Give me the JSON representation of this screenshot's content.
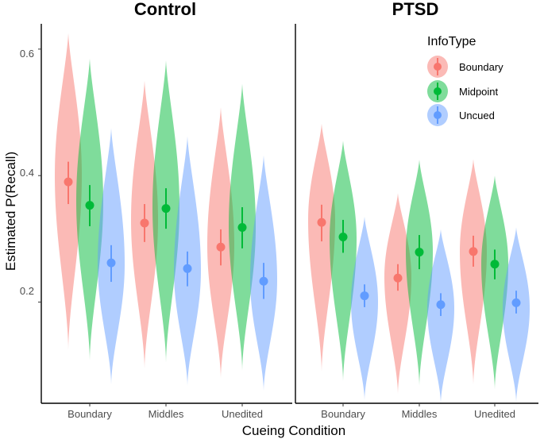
{
  "chart_data": {
    "type": "violin",
    "xlabel": "Cueing Condition",
    "ylabel": "Estimated P(Recall)",
    "ylim": [
      0.04,
      0.64
    ],
    "yticks": [
      "0.2",
      "0.4",
      "0.6"
    ],
    "ytick_values": [
      0.2,
      0.4,
      0.6
    ],
    "categories": [
      "Boundary",
      "Middles",
      "Unedited"
    ],
    "grid": false,
    "legend": {
      "title": "InfoType",
      "placement": "top-right",
      "entries": [
        {
          "label": "Boundary",
          "color": "#F8766D"
        },
        {
          "label": "Midpoint",
          "color": "#00BA38"
        },
        {
          "label": "Uncued",
          "color": "#619CFF"
        }
      ]
    },
    "facets": [
      {
        "title": "Control",
        "groups": [
          {
            "category": "Boundary",
            "series": [
              {
                "info": "Boundary",
                "mean": 0.39,
                "ci": [
                  0.355,
                  0.422
                ],
                "violin": [
                  0.125,
                  0.625
                ],
                "peak": 0.4
              },
              {
                "info": "Midpoint",
                "mean": 0.353,
                "ci": [
                  0.32,
                  0.385
                ],
                "violin": [
                  0.108,
                  0.585
                ],
                "peak": 0.36
              },
              {
                "info": "Uncued",
                "mean": 0.262,
                "ci": [
                  0.232,
                  0.29
                ],
                "violin": [
                  0.07,
                  0.475
                ],
                "peak": 0.26
              }
            ]
          },
          {
            "category": "Middles",
            "series": [
              {
                "info": "Boundary",
                "mean": 0.325,
                "ci": [
                  0.295,
                  0.355
                ],
                "violin": [
                  0.095,
                  0.55
                ],
                "peak": 0.33
              },
              {
                "info": "Midpoint",
                "mean": 0.348,
                "ci": [
                  0.316,
                  0.38
                ],
                "violin": [
                  0.105,
                  0.582
                ],
                "peak": 0.35
              },
              {
                "info": "Uncued",
                "mean": 0.253,
                "ci": [
                  0.225,
                  0.28
                ],
                "violin": [
                  0.068,
                  0.462
                ],
                "peak": 0.25
              }
            ]
          },
          {
            "category": "Unedited",
            "series": [
              {
                "info": "Boundary",
                "mean": 0.287,
                "ci": [
                  0.258,
                  0.315
                ],
                "violin": [
                  0.08,
                  0.508
                ],
                "peak": 0.29
              },
              {
                "info": "Midpoint",
                "mean": 0.318,
                "ci": [
                  0.285,
                  0.35
                ],
                "violin": [
                  0.092,
                  0.545
                ],
                "peak": 0.32
              },
              {
                "info": "Uncued",
                "mean": 0.233,
                "ci": [
                  0.205,
                  0.262
                ],
                "violin": [
                  0.06,
                  0.432
                ],
                "peak": 0.235
              }
            ]
          }
        ]
      },
      {
        "title": "PTSD",
        "groups": [
          {
            "category": "Boundary",
            "series": [
              {
                "info": "Boundary",
                "mean": 0.326,
                "ci": [
                  0.296,
                  0.354
                ],
                "violin": [
                  0.09,
                  0.482
                ],
                "peak": 0.33
              },
              {
                "info": "Midpoint",
                "mean": 0.303,
                "ci": [
                  0.278,
                  0.33
                ],
                "violin": [
                  0.075,
                  0.455
                ],
                "peak": 0.3
              },
              {
                "info": "Uncued",
                "mean": 0.21,
                "ci": [
                  0.192,
                  0.228
                ],
                "violin": [
                  0.045,
                  0.335
                ],
                "peak": 0.2
              }
            ]
          },
          {
            "category": "Middles",
            "series": [
              {
                "info": "Boundary",
                "mean": 0.238,
                "ci": [
                  0.218,
                  0.26
                ],
                "violin": [
                  0.055,
                  0.372
                ],
                "peak": 0.24
              },
              {
                "info": "Midpoint",
                "mean": 0.279,
                "ci": [
                  0.252,
                  0.306
                ],
                "violin": [
                  0.068,
                  0.425
                ],
                "peak": 0.28
              },
              {
                "info": "Uncued",
                "mean": 0.196,
                "ci": [
                  0.178,
                  0.214
                ],
                "violin": [
                  0.04,
                  0.315
                ],
                "peak": 0.19
              }
            ]
          },
          {
            "category": "Unedited",
            "series": [
              {
                "info": "Boundary",
                "mean": 0.28,
                "ci": [
                  0.256,
                  0.305
                ],
                "violin": [
                  0.07,
                  0.426
                ],
                "peak": 0.28
              },
              {
                "info": "Midpoint",
                "mean": 0.26,
                "ci": [
                  0.236,
                  0.283
                ],
                "violin": [
                  0.062,
                  0.4
                ],
                "peak": 0.26
              },
              {
                "info": "Uncued",
                "mean": 0.199,
                "ci": [
                  0.182,
                  0.218
                ],
                "violin": [
                  0.042,
                  0.318
                ],
                "peak": 0.19
              }
            ]
          }
        ]
      }
    ]
  }
}
